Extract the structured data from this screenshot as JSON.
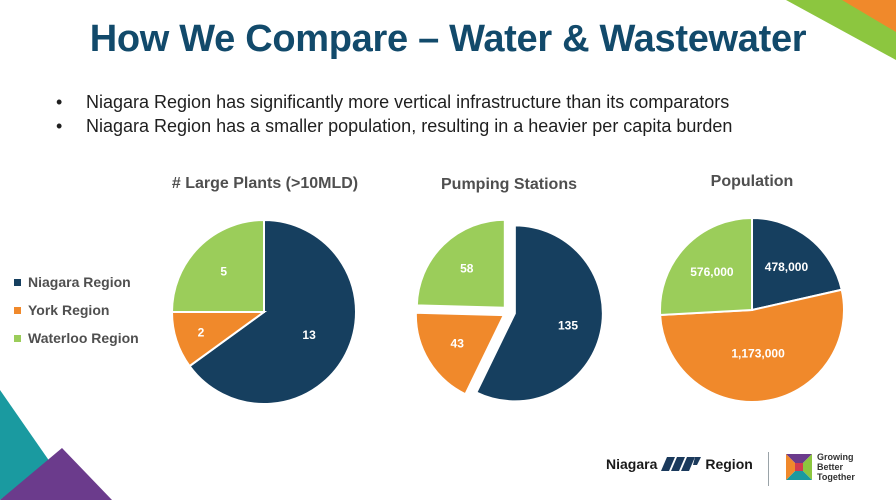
{
  "slide": {
    "title": "How We Compare – Water & Wastewater",
    "bullets": [
      "Niagara Region has significantly more vertical infrastructure than its comparators",
      "Niagara Region has a smaller population, resulting in a heavier per capita burden"
    ]
  },
  "legend": [
    {
      "label": "Niagara Region",
      "color": "#163f5f"
    },
    {
      "label": "York Region",
      "color": "#f0892b"
    },
    {
      "label": "Waterloo Region",
      "color": "#9bcd5a"
    }
  ],
  "chart_data": [
    {
      "type": "pie",
      "title": "# Large Plants (>10MLD)",
      "categories": [
        "Niagara Region",
        "York Region",
        "Waterloo Region"
      ],
      "values": [
        13,
        2,
        5
      ],
      "labels": [
        "13",
        "2",
        "5"
      ],
      "colors": [
        "#163f5f",
        "#f0892b",
        "#9bcd5a"
      ]
    },
    {
      "type": "pie",
      "title": "Pumping Stations",
      "categories": [
        "Niagara Region",
        "York Region",
        "Waterloo Region"
      ],
      "values": [
        135,
        43,
        58
      ],
      "labels": [
        "135",
        "43",
        "58"
      ],
      "colors": [
        "#163f5f",
        "#f0892b",
        "#9bcd5a"
      ]
    },
    {
      "type": "pie",
      "title": "Population",
      "categories": [
        "Niagara Region",
        "York Region",
        "Waterloo Region"
      ],
      "values": [
        478000,
        1173000,
        576000
      ],
      "labels": [
        "478,000",
        "1,173,000",
        "576,000"
      ],
      "colors": [
        "#163f5f",
        "#f0892b",
        "#9bcd5a"
      ]
    }
  ],
  "footer": {
    "logo_left": "Niagara",
    "logo_right": "Region",
    "tagline": [
      "Growing",
      "Better",
      "Together"
    ]
  },
  "decor_colors": {
    "purple": "#6b3b8c",
    "teal": "#1a9aa0",
    "green": "#8cc63f",
    "orange": "#f0892b"
  }
}
